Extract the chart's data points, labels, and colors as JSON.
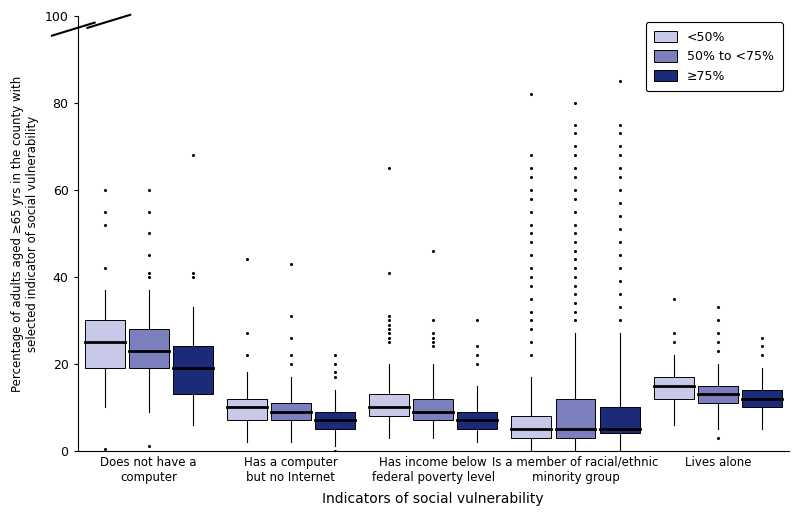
{
  "xlabel": "Indicators of social vulnerability",
  "ylabel": "Percentage of adults aged ≥65 yrs in the county with\nselected indicator of social vulnerability",
  "ylim": [
    0,
    100
  ],
  "yticks": [
    0,
    20,
    40,
    60,
    80,
    100
  ],
  "categories": [
    "Does not have a\ncomputer",
    "Has a computer\nbut no Internet",
    "Has income below\nfederal poverty level",
    "Is a member of racial/ethnic\nminority group",
    "Lives alone"
  ],
  "legend_labels": [
    "<50%",
    "50% to <75%",
    "≥75%"
  ],
  "box_colors": [
    "#c8c8e8",
    "#7b7fbe",
    "#1c2a7a"
  ],
  "groups": {
    "Does not have a\ncomputer": {
      "lt50": {
        "q1": 19,
        "med": 25,
        "q3": 30,
        "whislo": 10,
        "whishi": 37,
        "fliers_lo": [
          0.5
        ],
        "fliers_hi": [
          42,
          52,
          55,
          60
        ]
      },
      "m50_75": {
        "q1": 19,
        "med": 23,
        "q3": 28,
        "whislo": 9,
        "whishi": 37,
        "fliers_lo": [
          1.0
        ],
        "fliers_hi": [
          40,
          41,
          45,
          50,
          55,
          60
        ]
      },
      "ge75": {
        "q1": 13,
        "med": 19,
        "q3": 24,
        "whislo": 6,
        "whishi": 33,
        "fliers_lo": [],
        "fliers_hi": [
          40,
          41,
          68
        ]
      }
    },
    "Has a computer\nbut no Internet": {
      "lt50": {
        "q1": 7,
        "med": 10,
        "q3": 12,
        "whislo": 2,
        "whishi": 18,
        "fliers_lo": [],
        "fliers_hi": [
          22,
          27,
          44
        ]
      },
      "m50_75": {
        "q1": 7,
        "med": 9,
        "q3": 11,
        "whislo": 2,
        "whishi": 17,
        "fliers_lo": [],
        "fliers_hi": [
          20,
          22,
          26,
          31,
          43
        ]
      },
      "ge75": {
        "q1": 5,
        "med": 7,
        "q3": 9,
        "whislo": 1,
        "whishi": 14,
        "fliers_lo": [
          0
        ],
        "fliers_hi": [
          17,
          18,
          20,
          22
        ]
      }
    },
    "Has income below\nfederal poverty level": {
      "lt50": {
        "q1": 8,
        "med": 10,
        "q3": 13,
        "whislo": 3,
        "whishi": 20,
        "fliers_lo": [],
        "fliers_hi": [
          25,
          26,
          27,
          28,
          29,
          30,
          31,
          41,
          65
        ]
      },
      "m50_75": {
        "q1": 7,
        "med": 9,
        "q3": 12,
        "whislo": 3,
        "whishi": 20,
        "fliers_lo": [],
        "fliers_hi": [
          24,
          25,
          26,
          27,
          30,
          46
        ]
      },
      "ge75": {
        "q1": 5,
        "med": 7,
        "q3": 9,
        "whislo": 2,
        "whishi": 15,
        "fliers_lo": [],
        "fliers_hi": [
          20,
          22,
          24,
          30
        ]
      }
    },
    "Is a member of racial/ethnic\nminority group": {
      "lt50": {
        "q1": 3,
        "med": 5,
        "q3": 8,
        "whislo": 0,
        "whishi": 17,
        "fliers_lo": [],
        "fliers_hi": [
          22,
          25,
          28,
          30,
          32,
          35,
          38,
          40,
          42,
          45,
          48,
          50,
          52,
          55,
          58,
          60,
          63,
          65,
          68,
          82
        ]
      },
      "m50_75": {
        "q1": 3,
        "med": 5,
        "q3": 12,
        "whislo": 0,
        "whishi": 27,
        "fliers_lo": [],
        "fliers_hi": [
          30,
          32,
          34,
          36,
          38,
          40,
          42,
          44,
          46,
          48,
          50,
          52,
          55,
          58,
          60,
          63,
          65,
          68,
          70,
          73,
          75,
          80
        ]
      },
      "ge75": {
        "q1": 4,
        "med": 5,
        "q3": 10,
        "whislo": 0,
        "whishi": 27,
        "fliers_lo": [],
        "fliers_hi": [
          30,
          33,
          36,
          39,
          42,
          45,
          48,
          51,
          54,
          57,
          60,
          63,
          65,
          68,
          70,
          73,
          75,
          85
        ]
      }
    },
    "Lives alone": {
      "lt50": {
        "q1": 12,
        "med": 15,
        "q3": 17,
        "whislo": 6,
        "whishi": 22,
        "fliers_lo": [],
        "fliers_hi": [
          25,
          27,
          35
        ]
      },
      "m50_75": {
        "q1": 11,
        "med": 13,
        "q3": 15,
        "whislo": 5,
        "whishi": 20,
        "fliers_lo": [
          3
        ],
        "fliers_hi": [
          23,
          25,
          27,
          30,
          33
        ]
      },
      "ge75": {
        "q1": 10,
        "med": 12,
        "q3": 14,
        "whislo": 5,
        "whishi": 19,
        "fliers_lo": [],
        "fliers_hi": [
          22,
          24,
          26
        ]
      }
    }
  }
}
